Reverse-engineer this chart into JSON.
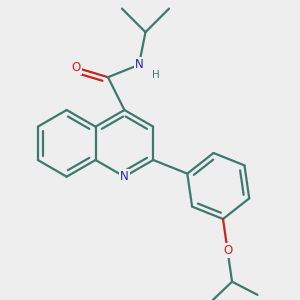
{
  "bg_color": "#eeeeee",
  "bond_color": "#3d7a6e",
  "N_color": "#2222bb",
  "O_color": "#cc2222",
  "bond_width": 1.6,
  "dbo": 0.15,
  "xlim": [
    -0.5,
    8.5
  ],
  "ylim": [
    -3.5,
    5.5
  ],
  "figsize": [
    3.0,
    3.0
  ],
  "dpi": 100,
  "label_fontsize": 8.5
}
